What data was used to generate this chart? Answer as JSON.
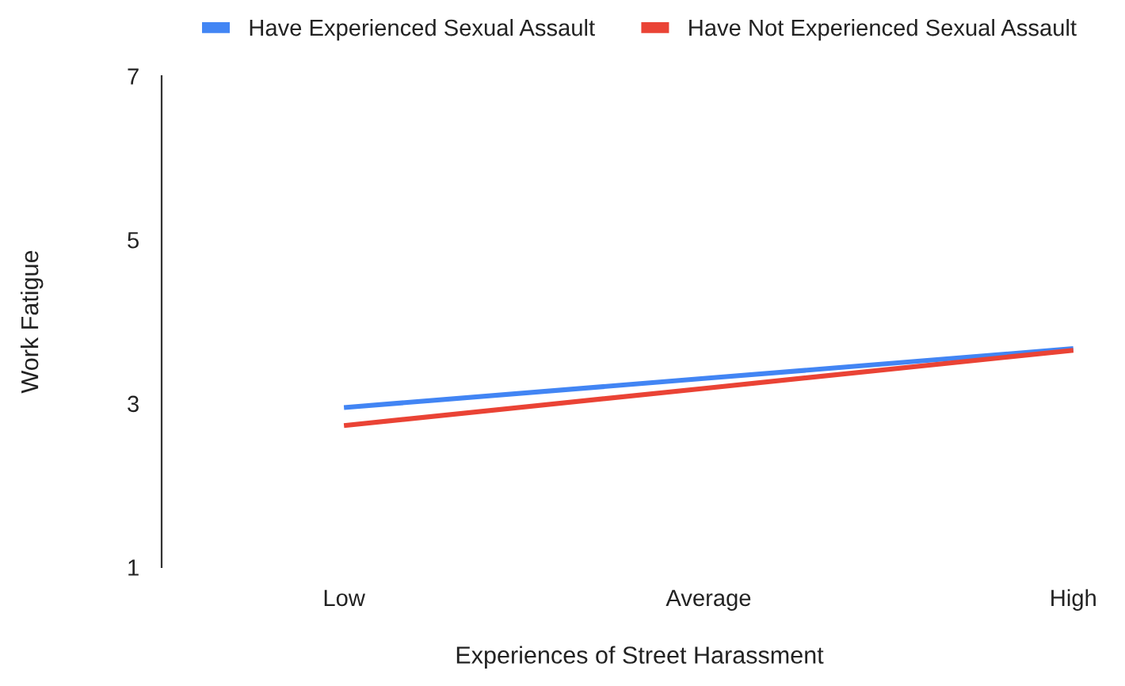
{
  "chart_data": {
    "type": "line",
    "xlabel": "Experiences of Street Harassment",
    "ylabel": "Work Fatigue",
    "categories": [
      "Low",
      "Average",
      "High"
    ],
    "series": [
      {
        "name": "Have Experienced Sexual Assault",
        "color": "#4285f4",
        "values": [
          2.95,
          3.31,
          3.67
        ]
      },
      {
        "name": "Have Not Experienced Sexual Assault",
        "color": "#ea4335",
        "values": [
          2.73,
          3.19,
          3.65
        ]
      }
    ],
    "ylim": [
      1,
      7
    ],
    "yticks": [
      1,
      3,
      5,
      7
    ],
    "grid": false,
    "legend": "top",
    "marker": "none",
    "line_style": "solid"
  }
}
